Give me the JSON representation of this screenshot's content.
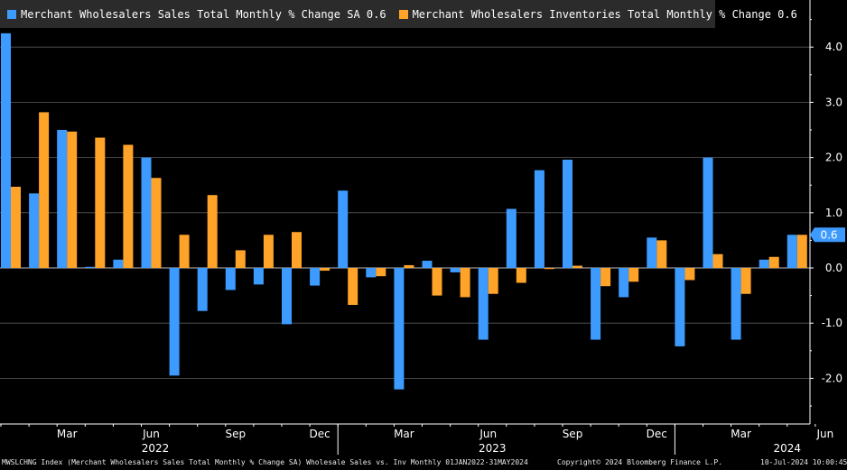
{
  "chart_data": {
    "type": "bar",
    "title": "Wholesale Sales vs. Inv",
    "categories": [
      "Jan 2022",
      "Feb 2022",
      "Mar 2022",
      "Apr 2022",
      "May 2022",
      "Jun 2022",
      "Jul 2022",
      "Aug 2022",
      "Sep 2022",
      "Oct 2022",
      "Nov 2022",
      "Dec 2022",
      "Jan 2023",
      "Feb 2023",
      "Mar 2023",
      "Apr 2023",
      "May 2023",
      "Jun 2023",
      "Jul 2023",
      "Aug 2023",
      "Sep 2023",
      "Oct 2023",
      "Nov 2023",
      "Dec 2023",
      "Jan 2024",
      "Feb 2024",
      "Mar 2024",
      "Apr 2024",
      "May 2024"
    ],
    "series": [
      {
        "name": "Merchant Wholesalers Sales Total Monthly % Change SA",
        "last": "0.6",
        "color": "#3d9bff",
        "values": [
          4.25,
          1.35,
          2.5,
          0.02,
          0.15,
          2.0,
          -1.95,
          -0.78,
          -0.4,
          -0.3,
          -1.02,
          -0.32,
          1.4,
          -0.17,
          -2.2,
          0.13,
          -0.08,
          -1.3,
          1.07,
          1.77,
          1.96,
          -1.3,
          -0.53,
          0.55,
          -1.42,
          2.0,
          -1.3,
          0.15,
          0.6
        ]
      },
      {
        "name": "Merchant Wholesalers Inventories Total Monthly % Change",
        "last": "0.6",
        "color": "#ffa329",
        "values": [
          1.47,
          2.82,
          2.47,
          2.36,
          2.23,
          1.63,
          0.6,
          1.32,
          0.32,
          0.6,
          0.65,
          -0.05,
          -0.67,
          -0.15,
          0.05,
          -0.5,
          -0.53,
          -0.47,
          -0.27,
          -0.02,
          0.04,
          -0.33,
          -0.25,
          0.5,
          -0.22,
          0.25,
          -0.47,
          0.2,
          0.6
        ]
      }
    ],
    "ylim": [
      -2.8,
      4.6
    ],
    "yticks": [
      "4.0",
      "3.0",
      "2.0",
      "1.0",
      "0.0",
      "-1.0",
      "-2.0"
    ],
    "ytick_values": [
      4,
      3,
      2,
      1,
      0,
      -1,
      -2
    ],
    "month_labels": [
      {
        "index": 2,
        "label": "Mar"
      },
      {
        "index": 5,
        "label": "Jun"
      },
      {
        "index": 8,
        "label": "Sep"
      },
      {
        "index": 11,
        "label": "Dec"
      },
      {
        "index": 14,
        "label": "Mar"
      },
      {
        "index": 17,
        "label": "Jun"
      },
      {
        "index": 20,
        "label": "Sep"
      },
      {
        "index": 23,
        "label": "Dec"
      },
      {
        "index": 26,
        "label": "Mar"
      },
      {
        "index": 29,
        "label": "Jun"
      }
    ],
    "year_labels": [
      {
        "center_index": 5.5,
        "label": "2022"
      },
      {
        "center_index": 17.5,
        "label": "2023"
      },
      {
        "center_index": 28,
        "label": "2024"
      }
    ],
    "current_value_label": "0.6"
  },
  "legend": {
    "sales_label": "Merchant Wholesalers Sales Total Monthly % Change SA 0.6",
    "inventories_label": "Merchant Wholesalers Inventories Total Monthly % Change 0.6"
  },
  "footer": {
    "source": "MWSLCHNG Index (Merchant Wholesalers Sales Total Monthly % Change SA) Wholesale Sales vs. Inv  Monthly 01JAN2022-31MAY2024",
    "copyright": "Copyright© 2024 Bloomberg Finance L.P.",
    "timestamp": "10-Jul-2024 10:00:45"
  }
}
